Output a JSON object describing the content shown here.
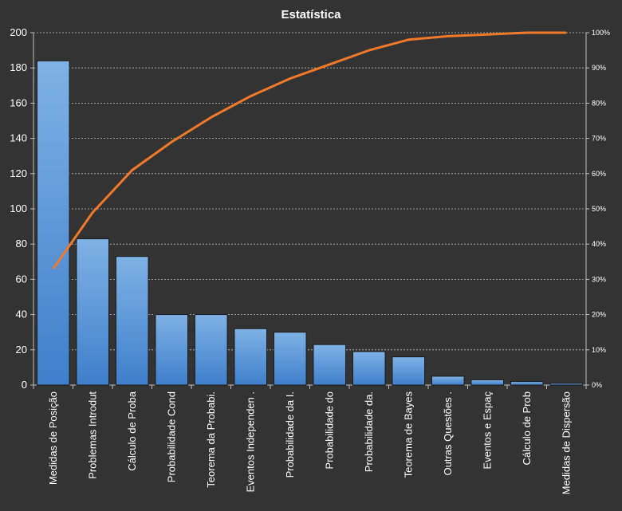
{
  "chart_data": {
    "type": "bar",
    "title": "Estatística",
    "categories": [
      "Medidas de Posição",
      "Problemas Introdut",
      "Cálculo de Proba",
      "Probabilidade Cond",
      "Teorema da Probabi.",
      "Eventos Independen .",
      "Probabilidade da I.",
      "Probabilidade do",
      "Probabilidade da.",
      "Teorema de Bayes",
      "Outras Questões .",
      "Eventos e Espaç",
      "Cálculo de Prob",
      "Medidas de Dispersão"
    ],
    "series": [
      {
        "type": "bar",
        "values": [
          184,
          83,
          73,
          40,
          40,
          32,
          30,
          23,
          19,
          16,
          5,
          3,
          2,
          1
        ]
      },
      {
        "type": "line",
        "axis": "secondary",
        "values": [
          33,
          49,
          61,
          69,
          76,
          82,
          87,
          91,
          95,
          98,
          99,
          99.5,
          100,
          100
        ]
      }
    ],
    "ylim": [
      0,
      200
    ],
    "yticks": [
      0,
      20,
      40,
      60,
      80,
      100,
      120,
      140,
      160,
      180,
      200
    ],
    "y2lim": [
      0,
      100
    ],
    "y2ticks": [
      "0%",
      "10%",
      "20%",
      "30%",
      "40%",
      "50%",
      "60%",
      "70%",
      "80%",
      "90%",
      "100%"
    ],
    "grid": true,
    "legend": "none"
  },
  "colors": {
    "background": "#333333",
    "bar_top": "#7fb2e5",
    "bar_bottom": "#3f7fcb",
    "line": "#f07a2a",
    "grid": "#bfbfbf",
    "text": "#ffffff"
  }
}
